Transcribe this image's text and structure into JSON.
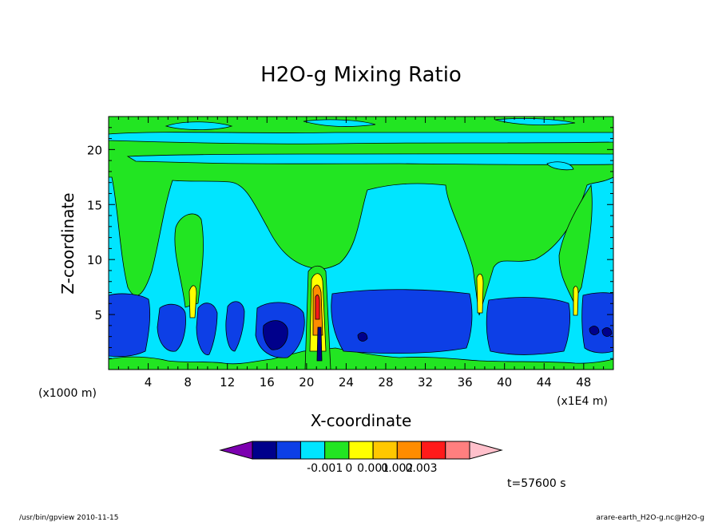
{
  "chart_data": {
    "type": "heatmap",
    "title": "H2O-g Mixing Ratio",
    "xlabel": "X-coordinate",
    "ylabel": "Z-coordinate",
    "x_unit_left": "(x1000 m)",
    "x_unit_right": "(x1E4 m)",
    "x_ticks": [
      "4",
      "8",
      "12",
      "16",
      "20",
      "24",
      "28",
      "32",
      "36",
      "40",
      "44",
      "48"
    ],
    "y_ticks": [
      "5",
      "10",
      "15",
      "20"
    ],
    "xlim": [
      0,
      51
    ],
    "ylim": [
      0,
      23
    ],
    "grid": false,
    "colorbar": {
      "colors": [
        "#7c00b0",
        "#00008b",
        "#0d3fe6",
        "#00e5ff",
        "#22e522",
        "#ffff00",
        "#ffc800",
        "#ff8c00",
        "#ff1a1a",
        "#ff7f7f",
        "#ffc0cb"
      ],
      "labels": [
        "-0.001",
        "0",
        "0.001",
        "0.002",
        "0.003"
      ]
    },
    "time_label": "t=57600 s",
    "footer_left": "/usr/bin/gpview  2010-11-15",
    "footer_right": "arare-earth_H2O-g.nc@H2O-g"
  }
}
